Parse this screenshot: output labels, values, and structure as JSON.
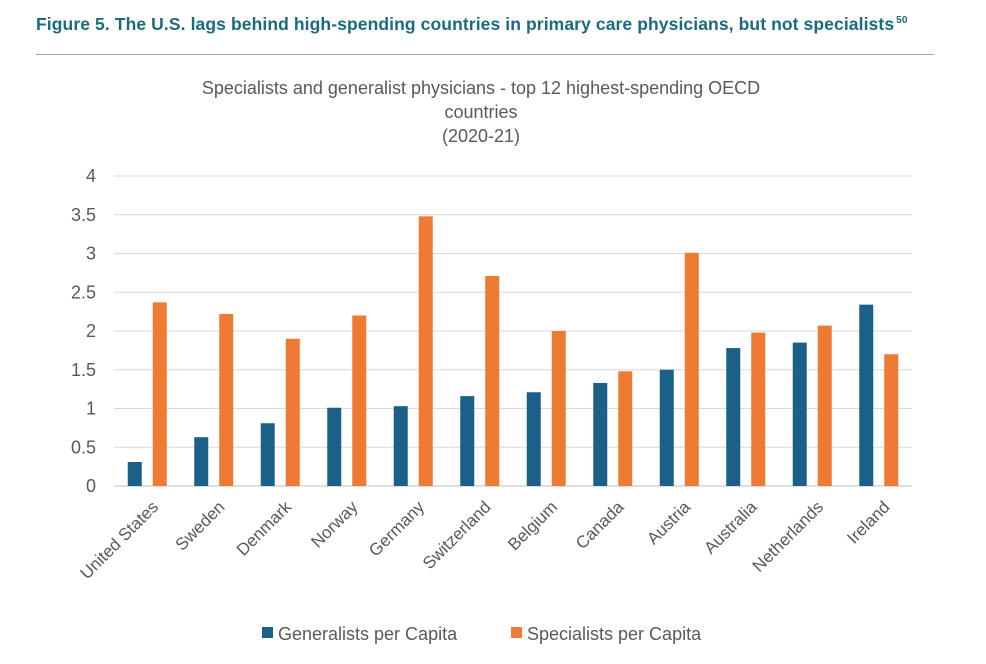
{
  "figure": {
    "label": "Figure 5. The U.S. lags behind high-spending countries in primary care physicians, but not specialists",
    "footnote": "50"
  },
  "chart_data": {
    "type": "bar",
    "title_lines": [
      "Specialists and generalist physicians - top 12 highest-spending OECD",
      "countries",
      "(2020-21)"
    ],
    "categories": [
      "United States",
      "Sweden",
      "Denmark",
      "Norway",
      "Germany",
      "Switzerland",
      "Belgium",
      "Canada",
      "Austria",
      "Australia",
      "Netherlands",
      "Ireland"
    ],
    "series": [
      {
        "name": "Generalists per Capita",
        "color": "#1b6088",
        "values": [
          0.31,
          0.63,
          0.81,
          1.01,
          1.03,
          1.16,
          1.21,
          1.33,
          1.5,
          1.78,
          1.85,
          2.34
        ]
      },
      {
        "name": "Specialists per Capita",
        "color": "#ef7a33",
        "values": [
          2.37,
          2.22,
          1.9,
          2.2,
          3.48,
          2.71,
          2.0,
          1.48,
          3.01,
          1.98,
          2.07,
          1.7
        ]
      }
    ],
    "yticks": [
      "0",
      "0.5",
      "1",
      "1.5",
      "2",
      "2.5",
      "3",
      "3.5",
      "4"
    ],
    "ylim": [
      0,
      4
    ],
    "grid": true,
    "legend_position": "bottom"
  }
}
